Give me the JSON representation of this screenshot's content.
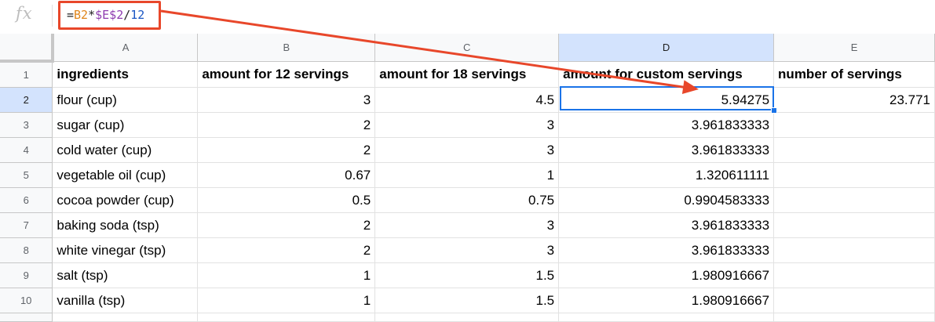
{
  "formula_bar": {
    "fx_label": "fx",
    "formula_parts": [
      {
        "text": "=",
        "color": "#222222"
      },
      {
        "text": "B2",
        "color": "#e0861b"
      },
      {
        "text": "*",
        "color": "#222222"
      },
      {
        "text": "$E$2",
        "color": "#8e3cb0"
      },
      {
        "text": "/",
        "color": "#222222"
      },
      {
        "text": "12",
        "color": "#1a56c4"
      }
    ]
  },
  "annotation": {
    "arrow_color": "#e8472a"
  },
  "selection": {
    "cell": "D2",
    "color": "#1a73e8"
  },
  "columns": [
    "A",
    "B",
    "C",
    "D",
    "E"
  ],
  "rows": [
    {
      "n": "1",
      "cells": [
        "ingredients",
        "amount for 12 servings",
        "amount for 18 servings",
        "amount for custom servings",
        "number of servings"
      ]
    },
    {
      "n": "2",
      "cells": [
        "flour (cup)",
        "3",
        "4.5",
        "5.94275",
        "23.771"
      ]
    },
    {
      "n": "3",
      "cells": [
        "sugar (cup)",
        "2",
        "3",
        "3.961833333",
        ""
      ]
    },
    {
      "n": "4",
      "cells": [
        "cold water (cup)",
        "2",
        "3",
        "3.961833333",
        ""
      ]
    },
    {
      "n": "5",
      "cells": [
        "vegetable oil (cup)",
        "0.67",
        "1",
        "1.320611111",
        ""
      ]
    },
    {
      "n": "6",
      "cells": [
        "cocoa powder (cup)",
        "0.5",
        "0.75",
        "0.9904583333",
        ""
      ]
    },
    {
      "n": "7",
      "cells": [
        "baking soda (tsp)",
        "2",
        "3",
        "3.961833333",
        ""
      ]
    },
    {
      "n": "8",
      "cells": [
        "white vinegar (tsp)",
        "2",
        "3",
        "3.961833333",
        ""
      ]
    },
    {
      "n": "9",
      "cells": [
        "salt (tsp)",
        "1",
        "1.5",
        "1.980916667",
        ""
      ]
    },
    {
      "n": "10",
      "cells": [
        "vanilla (tsp)",
        "1",
        "1.5",
        "1.980916667",
        ""
      ]
    }
  ]
}
